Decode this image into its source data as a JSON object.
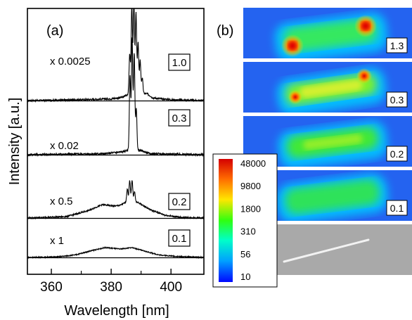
{
  "chart_data": [
    {
      "type": "line",
      "panel_label": "(a)",
      "xlabel": "Wavelength [nm]",
      "ylabel": "Intensity [a.u.]",
      "xlim": [
        352,
        411
      ],
      "x_ticks": [
        360,
        380,
        400
      ],
      "x_tick_labels": [
        "360",
        "380",
        "400"
      ],
      "series": [
        {
          "multiplier_label": "x 0.0025",
          "power_label": "1.0",
          "baseline": 0.0,
          "background": [
            [
              352,
              0.0
            ],
            [
              370,
              0.01
            ],
            [
              380,
              0.02
            ],
            [
              384,
              0.04
            ],
            [
              386,
              0.08
            ],
            [
              392,
              0.08
            ],
            [
              394,
              0.03
            ],
            [
              400,
              0.01
            ],
            [
              411,
              0.0
            ]
          ],
          "peaks": [
            [
              386.2,
              0.45
            ],
            [
              386.9,
              1.0
            ],
            [
              387.6,
              1.05
            ],
            [
              388.3,
              0.92
            ],
            [
              389.0,
              0.58
            ],
            [
              389.7,
              0.38
            ],
            [
              390.4,
              0.18
            ]
          ]
        },
        {
          "multiplier_label": "x 0.02",
          "power_label": "0.3",
          "baseline": 0.0,
          "background": [
            [
              352,
              0.0
            ],
            [
              378,
              0.01
            ],
            [
              384,
              0.03
            ],
            [
              386,
              0.05
            ],
            [
              390,
              0.04
            ],
            [
              393,
              0.01
            ],
            [
              411,
              0.0
            ]
          ],
          "peaks": [
            [
              386.3,
              0.72
            ],
            [
              387.0,
              1.1
            ],
            [
              387.7,
              0.95
            ],
            [
              388.4,
              0.4
            ]
          ]
        },
        {
          "multiplier_label": "x 0.5",
          "power_label": "0.2",
          "baseline": 0.0,
          "background": [
            [
              352,
              0.0
            ],
            [
              365,
              0.02
            ],
            [
              372,
              0.1
            ],
            [
              377,
              0.19
            ],
            [
              381,
              0.17
            ],
            [
              383,
              0.18
            ],
            [
              386,
              0.25
            ],
            [
              389,
              0.22
            ],
            [
              393,
              0.12
            ],
            [
              398,
              0.04
            ],
            [
              403,
              0.01
            ],
            [
              411,
              0.0
            ]
          ],
          "peaks": [
            [
              385.4,
              0.18
            ],
            [
              386.2,
              0.28
            ],
            [
              387.0,
              0.3
            ],
            [
              387.8,
              0.15
            ]
          ]
        },
        {
          "multiplier_label": "x 1",
          "power_label": "0.1",
          "baseline": 0.0,
          "background": [
            [
              352,
              0.0
            ],
            [
              362,
              0.01
            ],
            [
              368,
              0.05
            ],
            [
              373,
              0.13
            ],
            [
              378,
              0.2
            ],
            [
              383,
              0.17
            ],
            [
              387,
              0.2
            ],
            [
              391,
              0.13
            ],
            [
              396,
              0.05
            ],
            [
              402,
              0.02
            ],
            [
              411,
              0.0
            ]
          ],
          "peaks": []
        }
      ]
    },
    {
      "type": "heatmap",
      "panel_label": "(b)",
      "maps": [
        {
          "label": "1.3"
        },
        {
          "label": "0.3"
        },
        {
          "label": "0.2"
        },
        {
          "label": "0.1"
        }
      ],
      "colorbar": {
        "scale": "log",
        "tick_labels": [
          "48000",
          "9800",
          "1800",
          "310",
          "56",
          "10"
        ],
        "colors": [
          "#d40000",
          "#ff7000",
          "#ffe800",
          "#30ff00",
          "#00ffc0",
          "#00a8ff",
          "#0010ff"
        ]
      }
    }
  ]
}
